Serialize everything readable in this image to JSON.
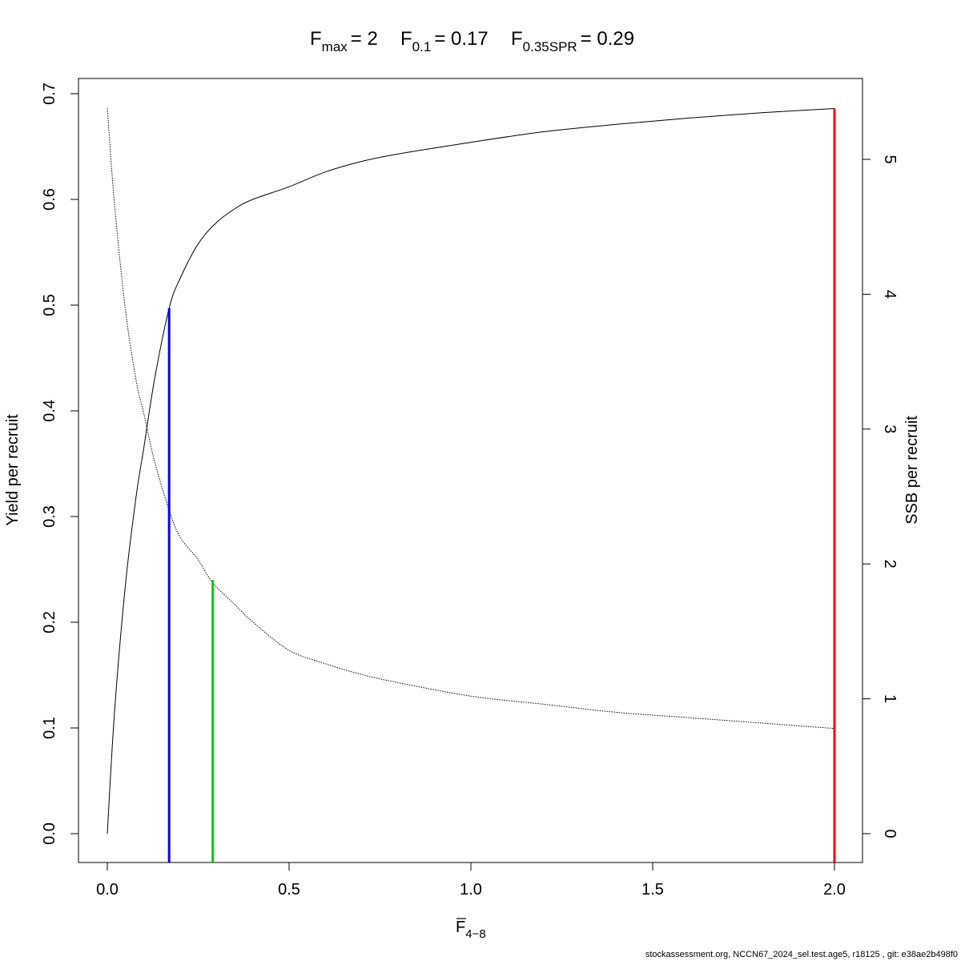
{
  "chart_data": {
    "type": "line",
    "title": {
      "fmax": {
        "main": "F",
        "sub": "max",
        "value": "= 2"
      },
      "f01": {
        "main": "F",
        "sub": "0.1",
        "value": "= 0.17"
      },
      "fspr": {
        "main": "F",
        "sub": "0.35SPR",
        "value": "= 0.29"
      }
    },
    "xlabel": {
      "main": "F",
      "sub": "4−8"
    },
    "ylabel_left": "Yield per recruit",
    "ylabel_right": "SSB per recruit",
    "xlim": [
      0,
      2
    ],
    "ylim_left": [
      0,
      0.7
    ],
    "ylim_right": [
      0,
      5.4
    ],
    "x_ticks": [
      "0.0",
      "0.5",
      "1.0",
      "1.5",
      "2.0"
    ],
    "y_left_ticks": [
      "0.0",
      "0.1",
      "0.2",
      "0.3",
      "0.4",
      "0.5",
      "0.6",
      "0.7"
    ],
    "y_right_ticks": [
      "0",
      "1",
      "2",
      "3",
      "4",
      "5"
    ],
    "series": [
      {
        "name": "Yield per recruit",
        "axis": "left",
        "style": "solid",
        "color": "#000000",
        "x": [
          0,
          0.02,
          0.05,
          0.08,
          0.1,
          0.13,
          0.17,
          0.2,
          0.25,
          0.3,
          0.35,
          0.4,
          0.5,
          0.6,
          0.7,
          0.8,
          1.0,
          1.2,
          1.4,
          1.6,
          1.8,
          2.0
        ],
        "y": [
          0,
          0.116,
          0.236,
          0.321,
          0.364,
          0.43,
          0.497,
          0.525,
          0.558,
          0.578,
          0.591,
          0.6,
          0.612,
          0.626,
          0.636,
          0.643,
          0.654,
          0.664,
          0.671,
          0.677,
          0.682,
          0.686
        ]
      },
      {
        "name": "SSB per recruit",
        "axis": "right",
        "style": "dotted",
        "color": "#000000",
        "x": [
          0,
          0.02,
          0.05,
          0.08,
          0.1,
          0.13,
          0.17,
          0.2,
          0.25,
          0.29,
          0.35,
          0.4,
          0.5,
          0.6,
          0.7,
          0.8,
          1.0,
          1.2,
          1.4,
          1.6,
          1.8,
          2.0
        ],
        "y": [
          5.38,
          4.66,
          3.88,
          3.35,
          3.12,
          2.76,
          2.4,
          2.2,
          2.03,
          1.86,
          1.7,
          1.57,
          1.36,
          1.26,
          1.18,
          1.12,
          1.02,
          0.96,
          0.9,
          0.86,
          0.82,
          0.78
        ]
      }
    ],
    "reference_lines": [
      {
        "name": "F0.1",
        "x": 0.17,
        "y_top": 0.497,
        "color": "#0000ff"
      },
      {
        "name": "F0.35SPR",
        "x": 0.29,
        "y_top": 0.24,
        "color": "#00cc00"
      },
      {
        "name": "Fmax",
        "x": 2.0,
        "y_top": 0.686,
        "color": "#ff0000"
      }
    ]
  },
  "footer": "stockassessment.org, NCCN67_2024_sel.test.age5, r18125 , git: e38ae2b498f0"
}
